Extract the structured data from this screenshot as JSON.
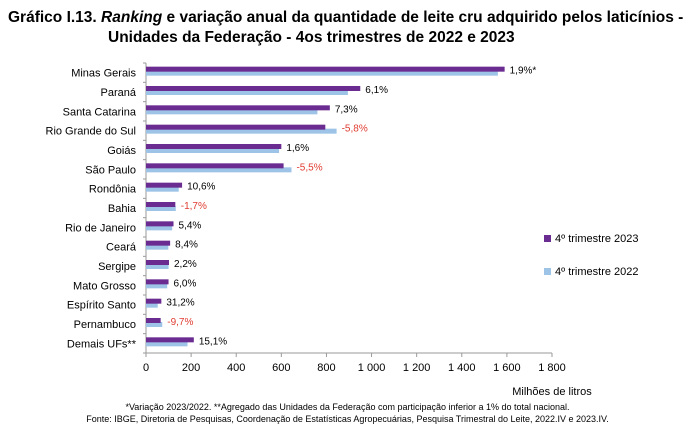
{
  "figure": {
    "title_prefix": "Gráfico I.13.",
    "title_italic": "Ranking",
    "title_rest": "e variação anual da quantidade de leite cru adquirido pelos laticínios -",
    "title_line2": "Unidades da Federação - 4os trimestres de 2022 e 2023",
    "footnote1": "*Variação 2023/2022. **Agregado das Unidades da Federação com participação inferior a 1% do total nacional.",
    "footnote2": "Fonte: IBGE, Diretoria de Pesquisas, Coordenação de Estatísticas Agropecuárias, Pesquisa Trimestral do Leite, 2022.IV e 2023.IV."
  },
  "chart_data": {
    "type": "bar",
    "orientation": "horizontal",
    "categories": [
      "Minas Gerais",
      "Paraná",
      "Santa Catarina",
      "Rio Grande do Sul",
      "Goiás",
      "São Paulo",
      "Rondônia",
      "Bahia",
      "Rio de Janeiro",
      "Ceará",
      "Sergipe",
      "Mato Grosso",
      "Espírito Santo",
      "Pernambuco",
      "Demais UFs**"
    ],
    "series": [
      {
        "name": "4º trimestre 2023",
        "color": "#6b2c91",
        "values": [
          1590,
          950,
          815,
          795,
          600,
          610,
          160,
          130,
          122,
          107,
          102,
          100,
          68,
          65,
          212
        ]
      },
      {
        "name": "4º trimestre 2022",
        "color": "#9dc3e6",
        "values": [
          1560,
          895,
          760,
          845,
          590,
          645,
          145,
          132,
          116,
          99,
          100,
          94,
          52,
          72,
          184
        ]
      }
    ],
    "labels": [
      "1,9%*",
      "6,1%",
      "7,3%",
      "-5,8%",
      "1,6%",
      "-5,5%",
      "10,6%",
      "-1,7%",
      "5,4%",
      "8,4%",
      "2,2%",
      "6,0%",
      "31,2%",
      "-9,7%",
      "15,1%"
    ],
    "label_colors": {
      "positive": "#000000",
      "negative": "#e03c31"
    },
    "xlim": [
      0,
      1800
    ],
    "xticks": [
      0,
      200,
      400,
      600,
      800,
      1000,
      1200,
      1400,
      1600,
      1800
    ],
    "xtick_labels": [
      "0",
      "200",
      "400",
      "600",
      "800",
      "1 000",
      "1 200",
      "1 400",
      "1 600",
      "1 800"
    ],
    "xlabel": "Milhões de litros",
    "legend_position": "right",
    "grid": false
  }
}
